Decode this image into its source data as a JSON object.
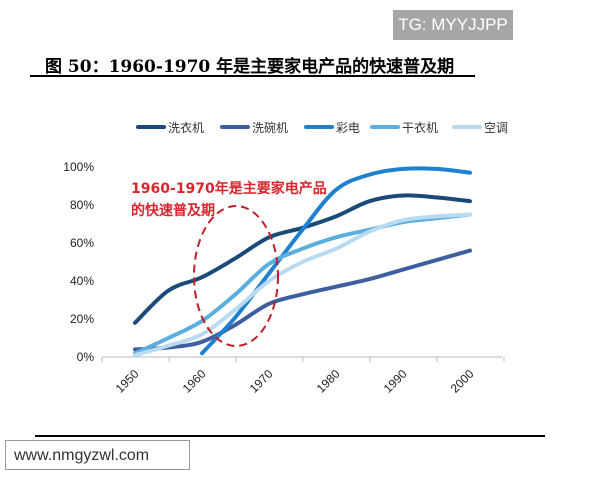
{
  "watermark_top": "TG: MYYJJPP",
  "watermark_bottom": "www.nmgyzwl.com",
  "chart_data": {
    "type": "line",
    "title": "图 50：1960-1970 年是主要家电产品的快速普及期",
    "xlabel": "",
    "ylabel": "",
    "x_tick_labels": [
      "1950",
      "1960",
      "1970",
      "1980",
      "1990",
      "2000"
    ],
    "y_tick_labels": [
      "0%",
      "20%",
      "40%",
      "60%",
      "80%",
      "100%"
    ],
    "ylim": [
      0,
      100
    ],
    "grid": false,
    "legend_position": "top",
    "x": [
      1950,
      1955,
      1960,
      1965,
      1970,
      1975,
      1980,
      1985,
      1990,
      1995,
      2000
    ],
    "series": [
      {
        "name": "洗衣机",
        "color": "#1a4a7a",
        "values": [
          18,
          35,
          42,
          52,
          63,
          68,
          74,
          82,
          85,
          84,
          82
        ]
      },
      {
        "name": "洗碗机",
        "color": "#3d5fa0",
        "values": [
          4,
          5,
          8,
          17,
          28,
          33,
          37,
          41,
          46,
          51,
          56
        ]
      },
      {
        "name": "彩电",
        "color": "#1f80d0",
        "values": [
          null,
          null,
          2,
          21,
          44,
          67,
          88,
          96,
          99,
          99,
          97
        ]
      },
      {
        "name": "干衣机",
        "color": "#5aaee0",
        "values": [
          2,
          10,
          19,
          33,
          49,
          57,
          63,
          67,
          71,
          73,
          75
        ]
      },
      {
        "name": "空调",
        "color": "#b8dbf2",
        "values": [
          1,
          6,
          12,
          25,
          40,
          50,
          57,
          66,
          72,
          74,
          75
        ]
      }
    ],
    "annotation": {
      "lines": [
        "1960-1970年是主要家电产品",
        "的快速普及期"
      ],
      "color": "#d9262e"
    }
  }
}
